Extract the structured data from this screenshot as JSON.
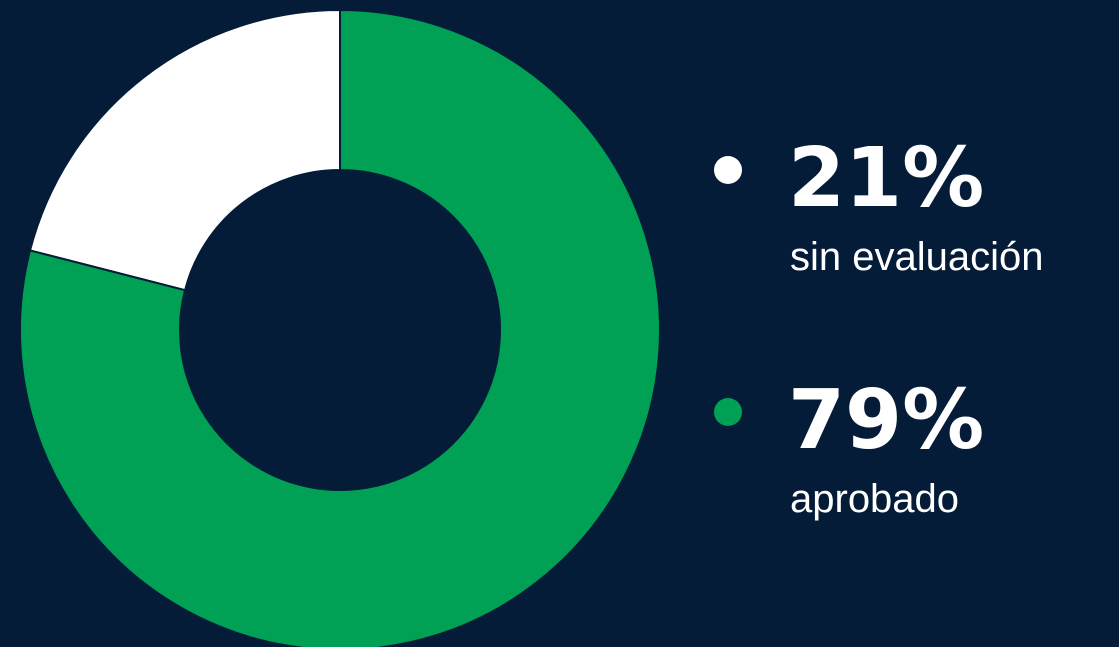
{
  "chart_data": {
    "type": "pie",
    "donut": true,
    "categories": [
      "sin evaluación",
      "aprobado"
    ],
    "values": [
      21,
      79
    ],
    "value_labels": [
      "21%",
      "79%"
    ],
    "colors": [
      "#ffffff",
      "#00a055"
    ]
  }
}
